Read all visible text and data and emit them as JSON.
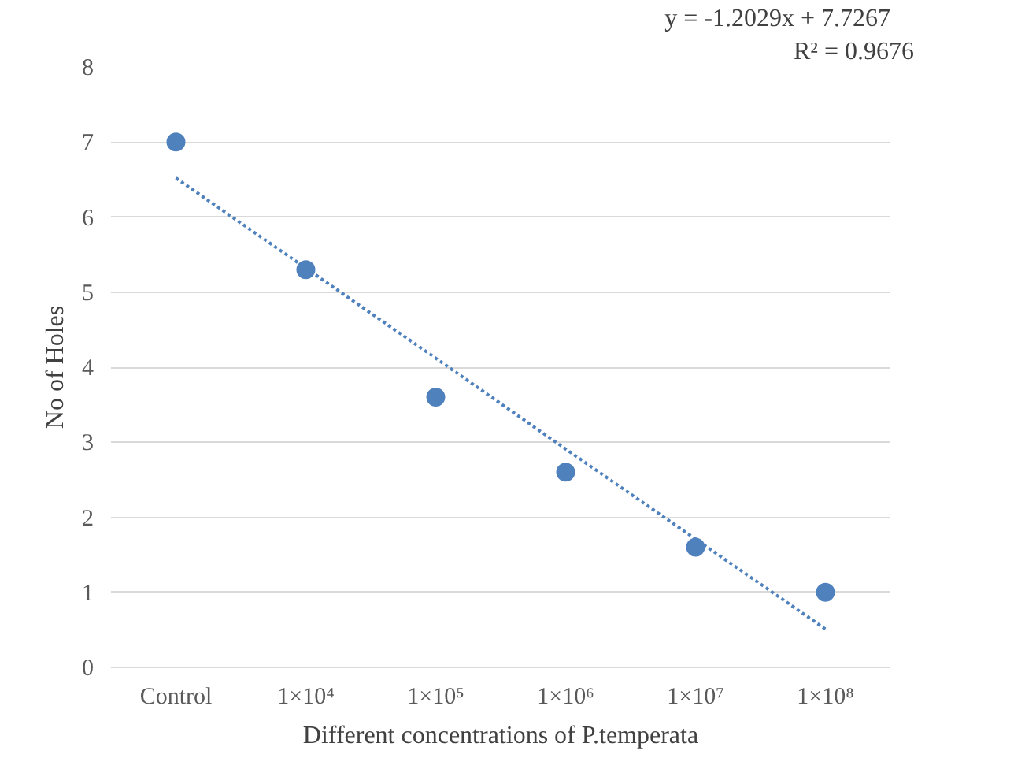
{
  "chart_data": {
    "type": "scatter",
    "xlabel": "Different concentrations of P.temperata",
    "ylabel": "No of Holes",
    "categories": [
      "Control",
      "1×10⁴",
      "1×10⁵",
      "1×10⁶",
      "1×10⁷",
      "1×10⁸"
    ],
    "series": [
      {
        "color": "#4f81bd",
        "marker": "circle",
        "values": [
          7.0,
          5.3,
          3.6,
          2.6,
          1.6,
          1.0
        ]
      },
      {
        "type": "line",
        "color": "#4f81bd",
        "line_style": "dotted",
        "values": [
          6.52,
          5.32,
          4.12,
          2.91,
          1.71,
          0.51
        ]
      }
    ],
    "ylim": [
      0,
      8
    ],
    "yticks": [
      0,
      1,
      2,
      3,
      4,
      5,
      6,
      7,
      8
    ],
    "grid": "y",
    "annotations": [
      "y = -1.2029x + 7.7267",
      "R² = 0.9676"
    ]
  }
}
